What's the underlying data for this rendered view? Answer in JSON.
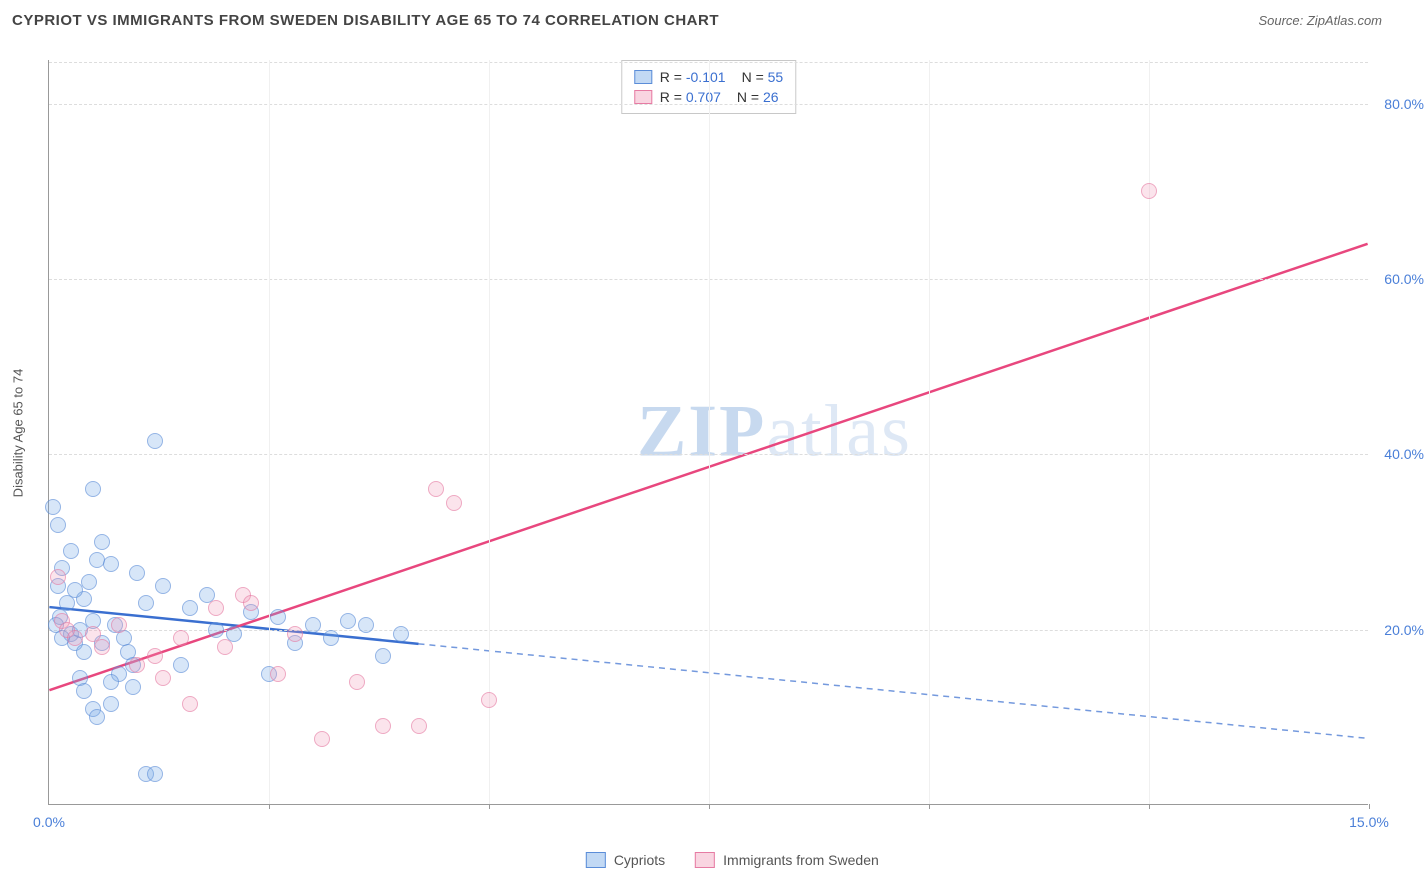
{
  "header": {
    "title": "CYPRIOT VS IMMIGRANTS FROM SWEDEN DISABILITY AGE 65 TO 74 CORRELATION CHART",
    "source": "Source: ZipAtlas.com"
  },
  "chart": {
    "type": "scatter",
    "y_axis_label": "Disability Age 65 to 74",
    "xlim": [
      0,
      15
    ],
    "ylim": [
      0,
      85
    ],
    "x_ticks": [
      0,
      2.5,
      5.0,
      7.5,
      10.0,
      12.5,
      15.0
    ],
    "x_tick_labels": [
      "0.0%",
      "",
      "",
      "",
      "",
      "",
      "15.0%"
    ],
    "y_ticks": [
      20,
      40,
      60,
      80
    ],
    "y_tick_labels": [
      "20.0%",
      "40.0%",
      "60.0%",
      "80.0%"
    ],
    "grid_color": "#dddddd",
    "background_color": "#ffffff",
    "watermark": "ZIPatlas",
    "series": [
      {
        "name": "Cypriots",
        "marker_color": "rgba(120,170,230,0.45)",
        "marker_border": "#5b8dd8",
        "r_value": "-0.101",
        "n_value": "55",
        "trend": {
          "x1": 0,
          "y1": 22.5,
          "x2": 15,
          "y2": 7.5,
          "solid_until_x": 4.2,
          "color": "#3a6fd0"
        },
        "points": [
          [
            0.05,
            34
          ],
          [
            0.1,
            32
          ],
          [
            0.15,
            27
          ],
          [
            0.1,
            25
          ],
          [
            0.2,
            23
          ],
          [
            0.12,
            21.5
          ],
          [
            0.08,
            20.5
          ],
          [
            0.25,
            19.5
          ],
          [
            0.15,
            19
          ],
          [
            0.3,
            18.5
          ],
          [
            0.35,
            20
          ],
          [
            0.4,
            23.5
          ],
          [
            0.45,
            25.5
          ],
          [
            0.5,
            36
          ],
          [
            0.6,
            30
          ],
          [
            0.55,
            28
          ],
          [
            0.7,
            27.5
          ],
          [
            0.75,
            20.5
          ],
          [
            0.85,
            19
          ],
          [
            0.9,
            17.5
          ],
          [
            0.95,
            16
          ],
          [
            1.0,
            26.5
          ],
          [
            1.1,
            23
          ],
          [
            1.2,
            41.5
          ],
          [
            0.8,
            15
          ],
          [
            0.7,
            14
          ],
          [
            0.95,
            13.5
          ],
          [
            0.35,
            14.5
          ],
          [
            0.4,
            13
          ],
          [
            0.5,
            11
          ],
          [
            0.55,
            10
          ],
          [
            1.1,
            3.5
          ],
          [
            1.2,
            3.5
          ],
          [
            1.3,
            25
          ],
          [
            1.5,
            16
          ],
          [
            1.6,
            22.5
          ],
          [
            1.8,
            24
          ],
          [
            1.9,
            20
          ],
          [
            2.1,
            19.5
          ],
          [
            2.3,
            22
          ],
          [
            2.5,
            15
          ],
          [
            2.6,
            21.5
          ],
          [
            2.8,
            18.5
          ],
          [
            3.0,
            20.5
          ],
          [
            3.2,
            19
          ],
          [
            3.4,
            21
          ],
          [
            3.6,
            20.5
          ],
          [
            3.8,
            17
          ],
          [
            4.0,
            19.5
          ],
          [
            0.4,
            17.5
          ],
          [
            0.6,
            18.5
          ],
          [
            0.7,
            11.5
          ],
          [
            0.3,
            24.5
          ],
          [
            0.25,
            29
          ],
          [
            0.5,
            21
          ]
        ]
      },
      {
        "name": "Immigrants from Sweden",
        "marker_color": "rgba(240,150,180,0.40)",
        "marker_border": "#e67ba3",
        "r_value": "0.707",
        "n_value": "26",
        "trend": {
          "x1": 0,
          "y1": 13,
          "x2": 15,
          "y2": 64,
          "solid_until_x": 15,
          "color": "#e8477e"
        },
        "points": [
          [
            0.1,
            26
          ],
          [
            0.15,
            21
          ],
          [
            0.2,
            20
          ],
          [
            0.3,
            19
          ],
          [
            0.5,
            19.5
          ],
          [
            0.6,
            18
          ],
          [
            0.8,
            20.5
          ],
          [
            1.0,
            16
          ],
          [
            1.2,
            17
          ],
          [
            1.3,
            14.5
          ],
          [
            1.5,
            19
          ],
          [
            1.6,
            11.5
          ],
          [
            1.9,
            22.5
          ],
          [
            2.0,
            18
          ],
          [
            2.2,
            24
          ],
          [
            2.3,
            23
          ],
          [
            2.6,
            15
          ],
          [
            2.8,
            19.5
          ],
          [
            3.1,
            7.5
          ],
          [
            3.5,
            14
          ],
          [
            3.8,
            9
          ],
          [
            4.2,
            9
          ],
          [
            4.4,
            36
          ],
          [
            4.6,
            34.5
          ],
          [
            5.0,
            12
          ],
          [
            12.5,
            70
          ]
        ]
      }
    ],
    "stat_legend": [
      {
        "swatch_fill": "rgba(120,170,230,0.45)",
        "swatch_border": "#5b8dd8",
        "r": "-0.101",
        "n": "55"
      },
      {
        "swatch_fill": "rgba(240,150,180,0.40)",
        "swatch_border": "#e67ba3",
        "r": "0.707",
        "n": "26"
      }
    ],
    "bottom_legend": [
      {
        "label": "Cypriots",
        "swatch_fill": "rgba(120,170,230,0.45)",
        "swatch_border": "#5b8dd8"
      },
      {
        "label": "Immigrants from Sweden",
        "swatch_fill": "rgba(240,150,180,0.40)",
        "swatch_border": "#e67ba3"
      }
    ]
  }
}
